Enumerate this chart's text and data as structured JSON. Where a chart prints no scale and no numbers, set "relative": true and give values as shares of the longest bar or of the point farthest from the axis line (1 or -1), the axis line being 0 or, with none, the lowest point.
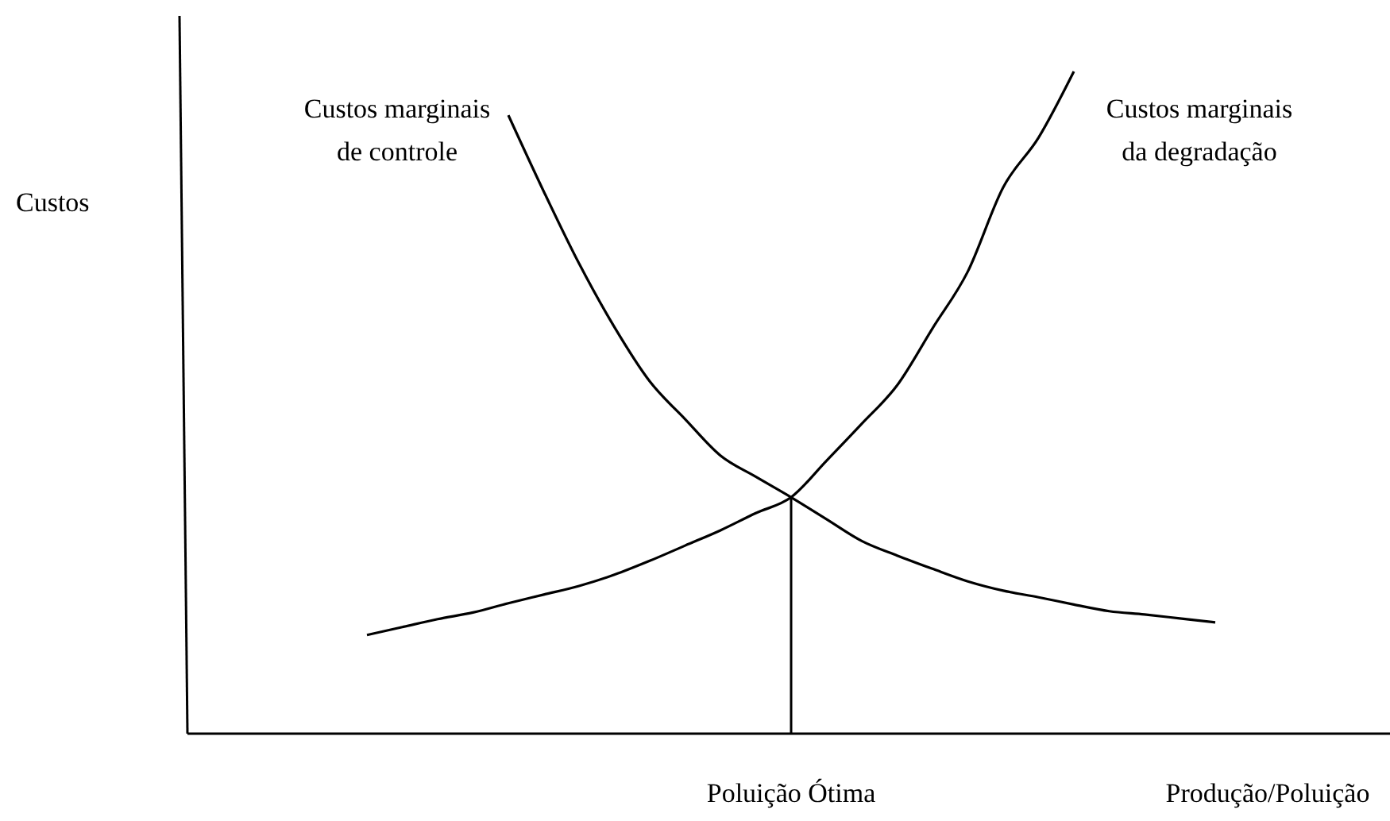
{
  "chart_data": {
    "type": "line",
    "relative": true,
    "xlabel": "Produção/Poluição",
    "annotations": [
      "Custos",
      "Poluição Ótima"
    ],
    "categories": [
      null,
      null,
      null,
      null,
      null,
      null,
      null,
      null,
      null,
      null,
      null,
      null,
      null,
      null,
      null,
      null,
      null,
      null,
      null,
      null,
      null,
      null,
      null,
      null,
      null
    ],
    "series": [
      {
        "name": "Custos marginais de controle",
        "color": "#000000",
        "values": [
          null,
          null,
          null,
          null,
          0.934,
          0.819,
          0.71,
          0.614,
          0.532,
          0.475,
          0.42,
          0.388,
          0.357,
          0.324,
          0.291,
          0.269,
          0.249,
          0.23,
          0.216,
          0.206,
          0.195,
          0.185,
          0.18,
          0.174,
          0.168
        ]
      },
      {
        "name": "Custos marginais da degradação",
        "color": "#000000",
        "values": [
          0.149,
          0.161,
          0.173,
          0.183,
          0.197,
          0.21,
          0.223,
          0.24,
          0.261,
          0.284,
          0.307,
          0.333,
          0.357,
          0.412,
          0.468,
          0.526,
          0.612,
          0.698,
          0.825,
          0.9,
          1.0,
          null,
          null,
          null,
          null
        ]
      }
    ]
  }
}
